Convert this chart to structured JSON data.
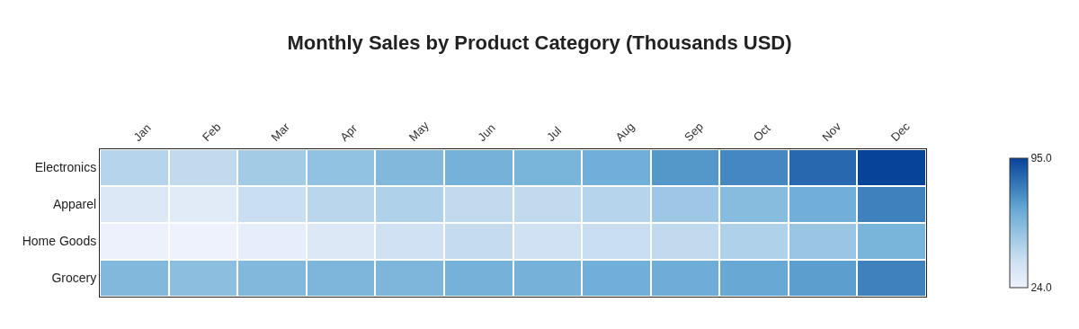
{
  "chart_data": {
    "type": "heatmap",
    "title": "Monthly Sales by Product Category (Thousands USD)",
    "categories": [
      "Jan",
      "Feb",
      "Mar",
      "Apr",
      "May",
      "Jun",
      "Jul",
      "Aug",
      "Sep",
      "Oct",
      "Nov",
      "Dec"
    ],
    "y_categories": [
      "Electronics",
      "Apparel",
      "Home Goods",
      "Grocery"
    ],
    "cells": [
      [
        45,
        42,
        50,
        55,
        60,
        63,
        62,
        64,
        72,
        76,
        85,
        95
      ],
      [
        32,
        30,
        40,
        44,
        47,
        42,
        42,
        45,
        52,
        58,
        64,
        78
      ],
      [
        25,
        24,
        27,
        32,
        38,
        41,
        38,
        40,
        42,
        47,
        53,
        62
      ],
      [
        60,
        57,
        60,
        61,
        61,
        63,
        63,
        64,
        65,
        67,
        70,
        78
      ]
    ],
    "clim": [
      24,
      95
    ],
    "cticks": [
      {
        "value": 24,
        "label": "24.0"
      },
      {
        "value": 95,
        "label": "95.0"
      }
    ]
  }
}
